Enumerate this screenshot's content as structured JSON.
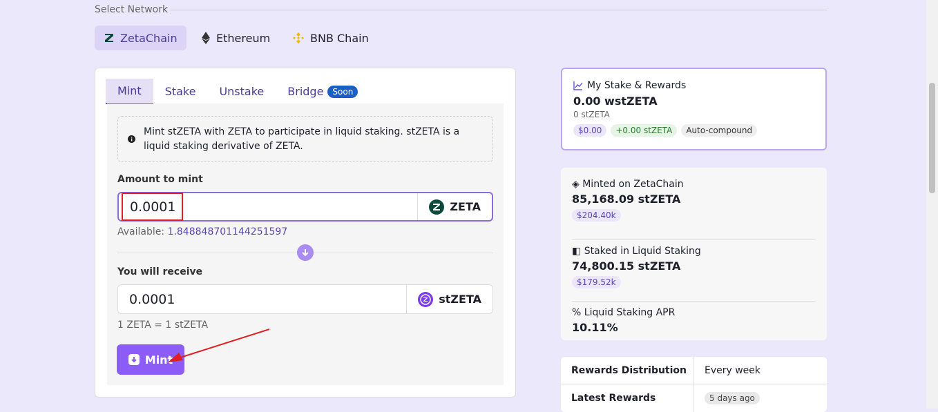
{
  "network": {
    "label": "Select Network",
    "options": [
      "ZetaChain",
      "Ethereum",
      "BNB Chain"
    ]
  },
  "tabs": {
    "items": [
      "Mint",
      "Stake",
      "Unstake",
      "Bridge"
    ],
    "badge": "Soon"
  },
  "mint": {
    "info": "Mint stZETA with ZETA to participate in liquid staking. stZETA is a liquid staking derivative of ZETA.",
    "amount_label": "Amount to mint",
    "amount": "0.0001",
    "amount_token": "ZETA",
    "available_label": "Available:",
    "available": "1.848848701144251597",
    "receive_label": "You will receive",
    "receive": "0.0001",
    "receive_token": "stZETA",
    "rate": "1 ZETA = 1 stZETA",
    "button": "Mint"
  },
  "my_stake": {
    "title": "My Stake & Rewards",
    "amount": "0.00 wstZETA",
    "sub": "0 stZETA",
    "badges": [
      "$0.00",
      "+0.00 stZETA",
      "Auto-compound"
    ]
  },
  "stats": [
    {
      "label": "Minted on ZetaChain",
      "value": "85,168.09 stZETA",
      "usd": "$204.40k"
    },
    {
      "label": "Staked in Liquid Staking",
      "value": "74,800.15 stZETA",
      "usd": "$179.52k"
    },
    {
      "label": "Liquid Staking APR",
      "value": "10.11%"
    }
  ],
  "distribution": {
    "rows": [
      [
        "Rewards Distribution",
        "Every week"
      ],
      [
        "Latest Rewards",
        "5 days ago"
      ]
    ]
  }
}
